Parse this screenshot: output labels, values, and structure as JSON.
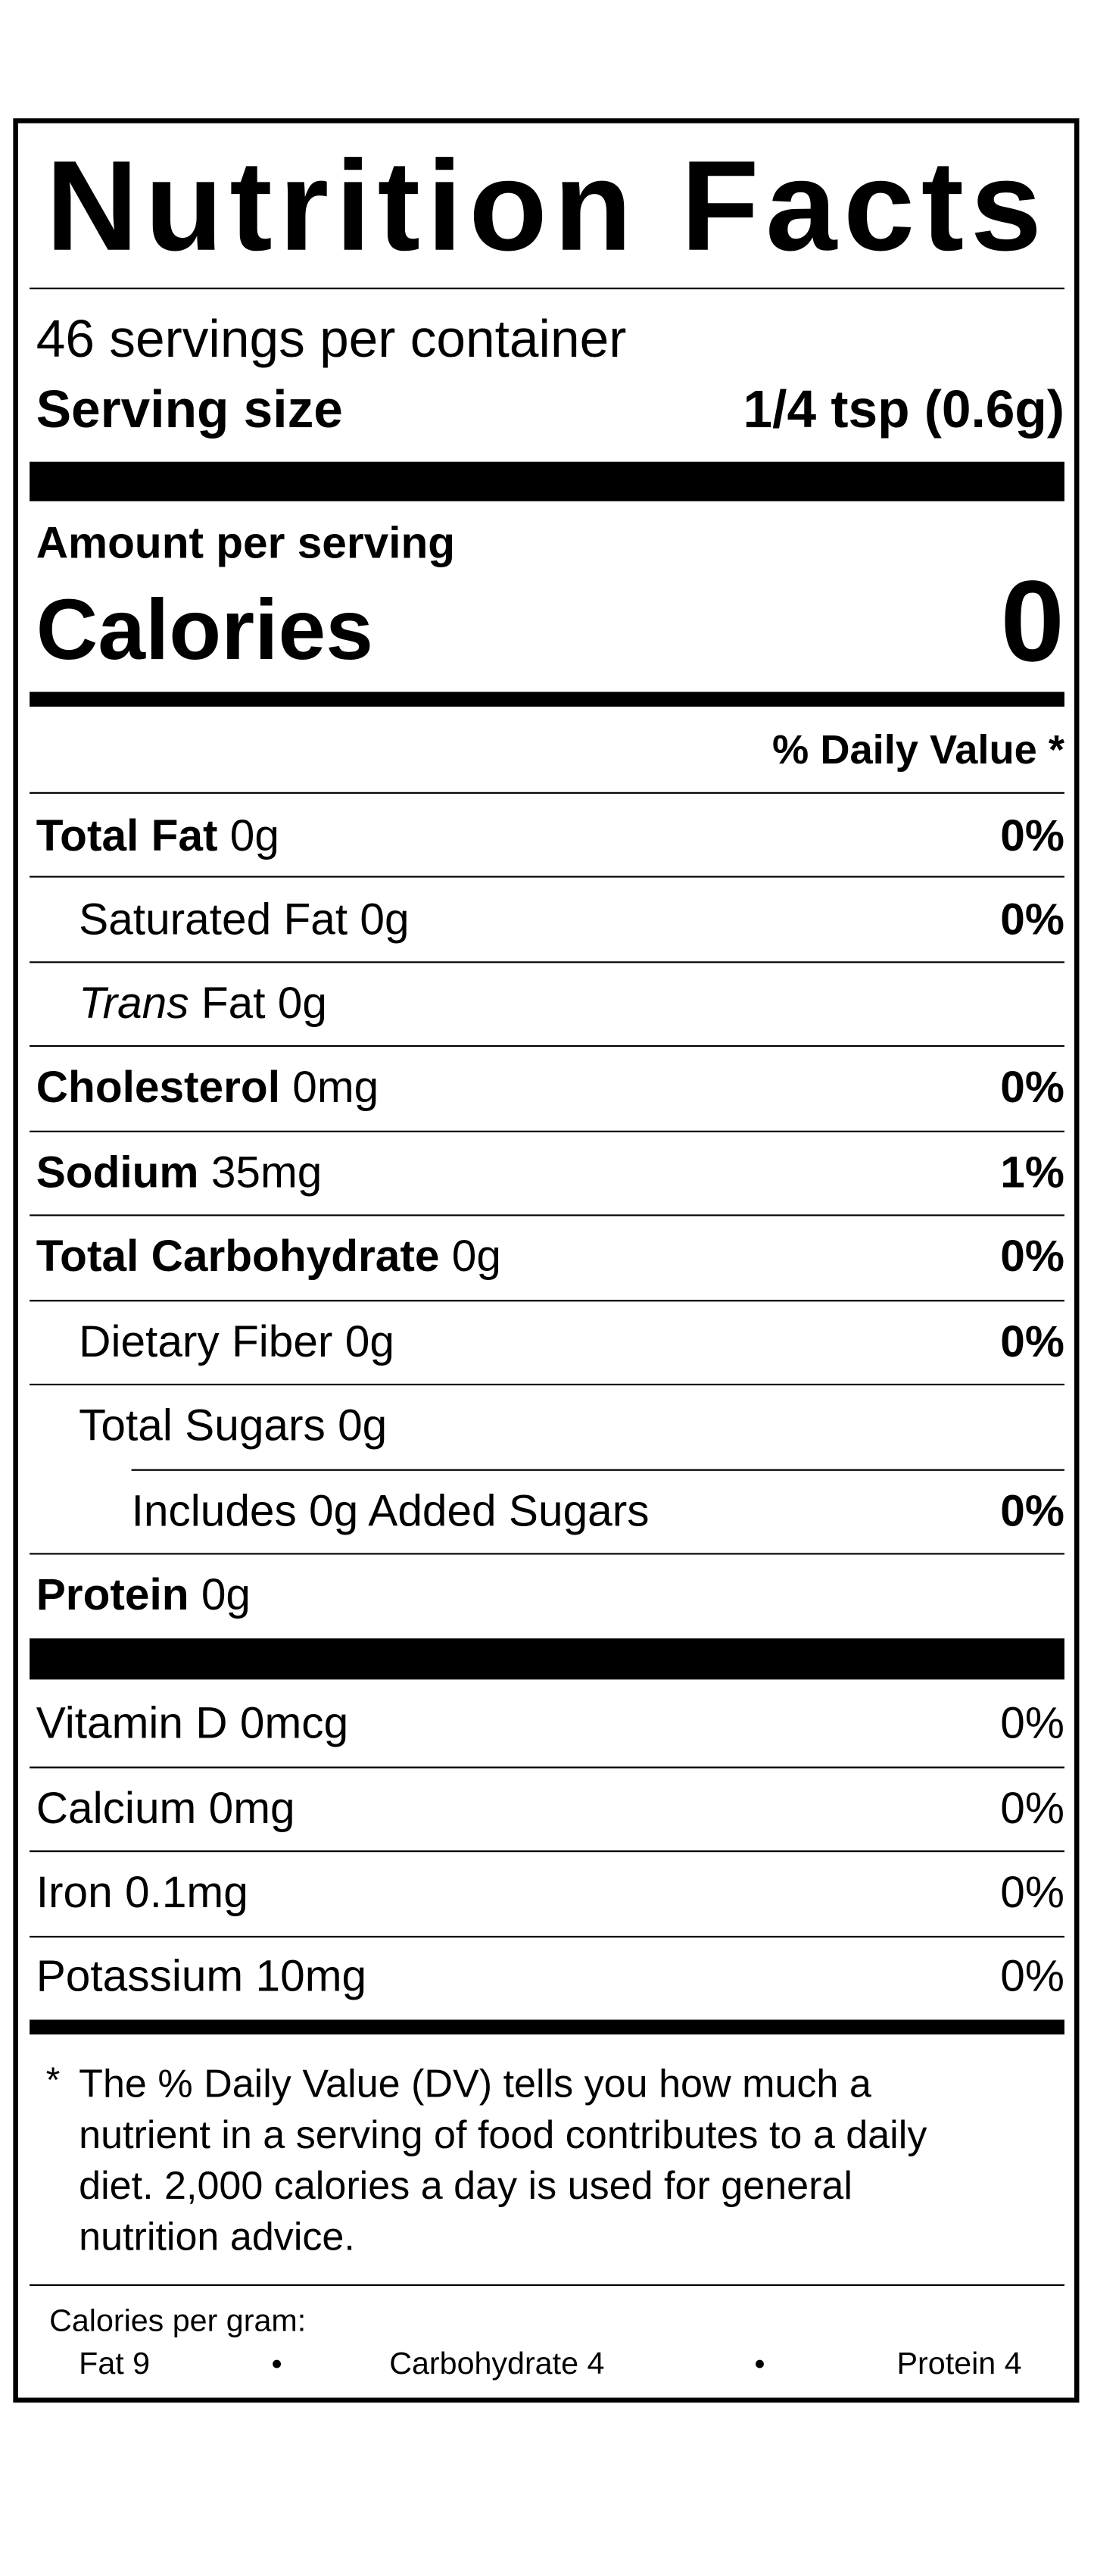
{
  "title": "Nutrition Facts",
  "servings_per_container": "46 servings per container",
  "serving_size": {
    "label": "Serving size",
    "value": "1/4 tsp (0.6g)"
  },
  "amount_per_serving": "Amount per serving",
  "calories": {
    "label": "Calories",
    "value": "0"
  },
  "daily_value_header": "% Daily Value *",
  "nutrients": [
    {
      "name": "Total Fat",
      "amount": "0g",
      "dv": "0%"
    },
    {
      "name": "Saturated Fat",
      "amount": "0g",
      "dv": "0%"
    },
    {
      "name_italic": "Trans",
      "name": "Fat",
      "amount": "0g"
    },
    {
      "name": "Cholesterol",
      "amount": "0mg",
      "dv": "0%"
    },
    {
      "name": "Sodium",
      "amount": "35mg",
      "dv": "1%"
    },
    {
      "name": "Total Carbohydrate",
      "amount": "0g",
      "dv": "0%"
    },
    {
      "name": "Dietary Fiber",
      "amount": "0g",
      "dv": "0%"
    },
    {
      "name": "Total Sugars",
      "amount": "0g"
    },
    {
      "name": "Includes 0g Added Sugars",
      "dv": "0%"
    },
    {
      "name": "Protein",
      "amount": "0g"
    }
  ],
  "vitamins": [
    {
      "name": "Vitamin D",
      "amount": "0mcg",
      "dv": "0%"
    },
    {
      "name": "Calcium",
      "amount": "0mg",
      "dv": "0%"
    },
    {
      "name": "Iron",
      "amount": "0.1mg",
      "dv": "0%"
    },
    {
      "name": "Potassium",
      "amount": "10mg",
      "dv": "0%"
    }
  ],
  "footnote": {
    "marker": "*",
    "text": "The % Daily Value (DV) tells you how much a nutrient in a serving of food contributes to a daily diet. 2,000 calories a day is used for general nutrition advice."
  },
  "calories_per_gram": {
    "label": "Calories per gram:",
    "items": [
      "Fat 9",
      "Carbohydrate 4",
      "Protein 4"
    ]
  }
}
